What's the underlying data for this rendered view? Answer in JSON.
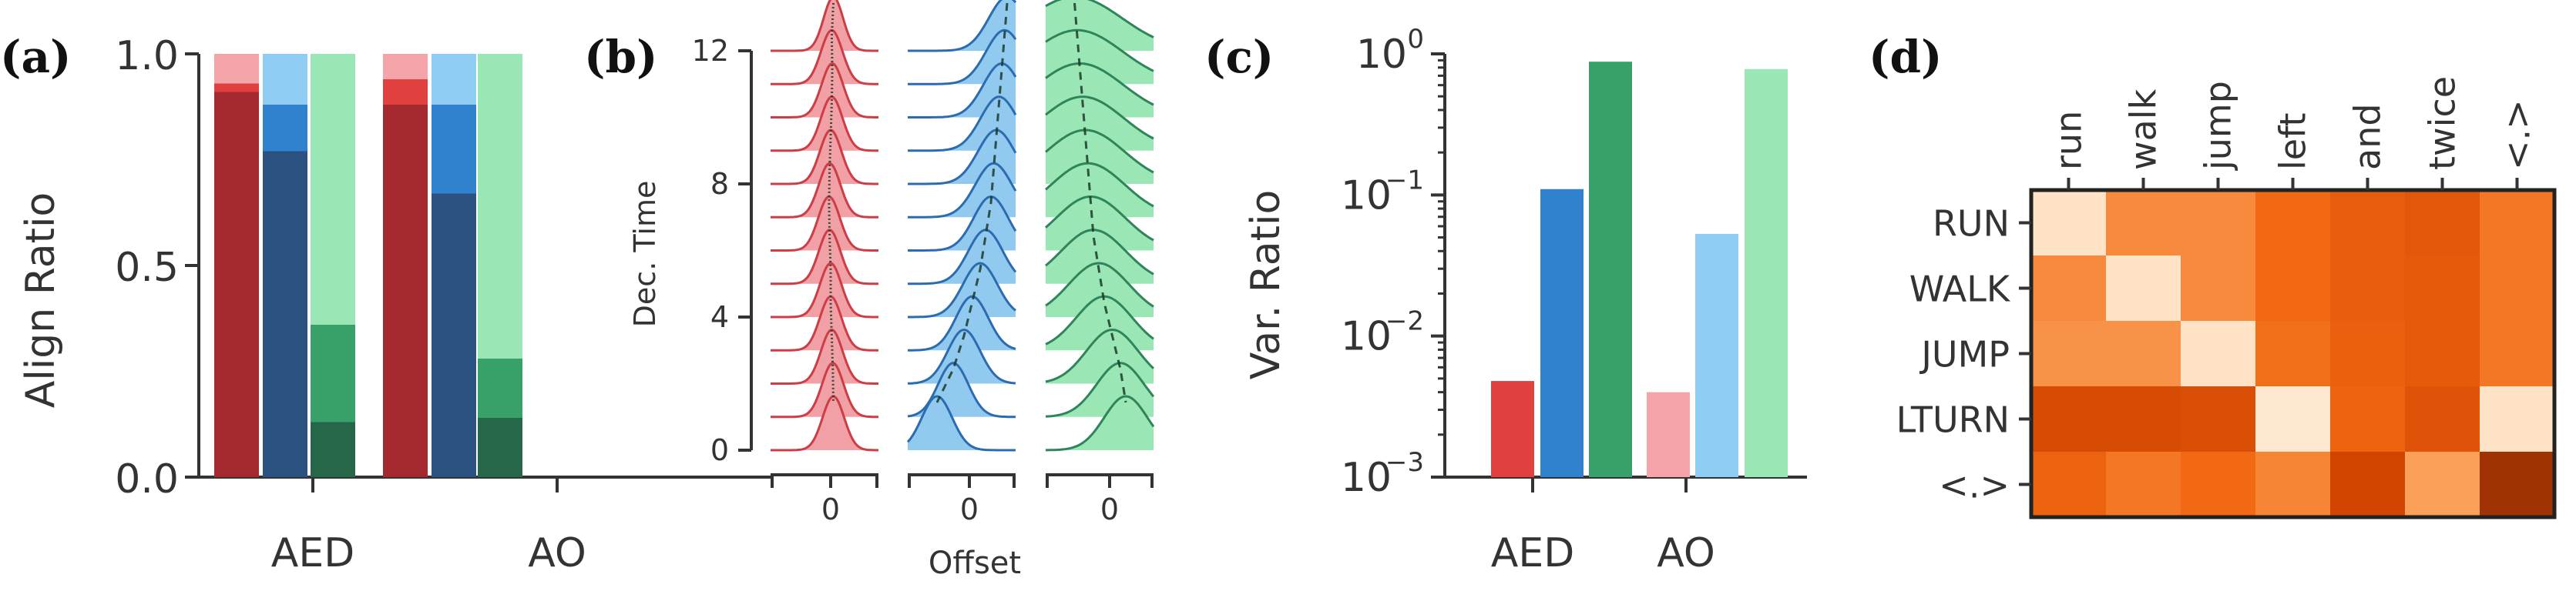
{
  "colors": {
    "red_dark": "#a52a30",
    "red_bright": "#e0403e",
    "red_light": "#f5a5aa",
    "blue_dark": "#2c5282",
    "blue_mid": "#3182ce",
    "blue_light": "#90cdf4",
    "green_dark": "#276749",
    "green_mid": "#38a169",
    "green_light": "#9ae6b4",
    "ridge_red_fill": "#f1a0a6",
    "ridge_red_line": "#cc3d45",
    "ridge_blue_fill": "#92c9ef",
    "ridge_blue_line": "#2b6cb0",
    "ridge_green_fill": "#9be6b5",
    "ridge_green_line": "#2f855a",
    "axis": "#333333"
  },
  "chart_data": [
    {
      "panel": "(a)",
      "type": "bar",
      "stacked": true,
      "ylabel": "Align Ratio",
      "ylim": [
        0,
        1
      ],
      "yticks": [
        0,
        0.5,
        1
      ],
      "ytick_labels": [
        "0.0",
        "0.5",
        "1.0"
      ],
      "categories": [
        "AED",
        "AO"
      ],
      "series": [
        {
          "name": "red",
          "colors": [
            "red_dark",
            "red_bright",
            "red_light"
          ],
          "segments": {
            "AED": [
              0.91,
              0.02,
              0.07
            ],
            "AO": [
              0.88,
              0.06,
              0.06
            ]
          }
        },
        {
          "name": "blue",
          "colors": [
            "blue_dark",
            "blue_mid",
            "blue_light"
          ],
          "segments": {
            "AED": [
              0.77,
              0.11,
              0.12
            ],
            "AO": [
              0.67,
              0.21,
              0.12
            ]
          }
        },
        {
          "name": "green",
          "colors": [
            "green_dark",
            "green_mid",
            "green_light"
          ],
          "segments": {
            "AED": [
              0.13,
              0.23,
              0.64
            ],
            "AO": [
              0.14,
              0.14,
              0.72
            ]
          }
        }
      ]
    },
    {
      "panel": "(b)",
      "type": "ridgeline",
      "ylabel": "Dec. Time",
      "xlabel": "Offset",
      "yticks": [
        0,
        4,
        8,
        12
      ],
      "ytick_labels": [
        "0",
        "4",
        "8",
        "12"
      ],
      "xtick_labels": [
        "0",
        "0",
        "0"
      ],
      "series": [
        {
          "name": "red",
          "peak_offsets": [
            0.05,
            0.04,
            0.02,
            0,
            0,
            -0.02,
            -0.03,
            -0.02,
            0,
            0.02,
            0.03,
            0.02,
            0.05
          ],
          "widths": [
            0.1,
            0.1,
            0.1,
            0.1,
            0.1,
            0.1,
            0.1,
            0.1,
            0.1,
            0.1,
            0.1,
            0.1,
            0.09
          ]
        },
        {
          "name": "blue",
          "peak_offsets": [
            -0.6,
            -0.3,
            -0.1,
            0.05,
            0.2,
            0.3,
            0.4,
            0.45,
            0.5,
            0.55,
            0.6,
            0.65,
            0.7
          ],
          "widths": [
            0.14,
            0.14,
            0.15,
            0.15,
            0.16,
            0.16,
            0.16,
            0.17,
            0.17,
            0.17,
            0.17,
            0.17,
            0.17
          ]
        },
        {
          "name": "green",
          "peak_offsets": [
            0.3,
            0.2,
            0.05,
            -0.1,
            -0.2,
            -0.3,
            -0.35,
            -0.4,
            -0.45,
            -0.5,
            -0.55,
            -0.6,
            -0.65
          ],
          "widths": [
            0.2,
            0.22,
            0.24,
            0.26,
            0.28,
            0.3,
            0.32,
            0.34,
            0.36,
            0.38,
            0.4,
            0.42,
            0.44
          ]
        }
      ]
    },
    {
      "panel": "(c)",
      "type": "bar",
      "yscale": "log",
      "ylabel": "Var. Ratio",
      "ylim": [
        0.001,
        1
      ],
      "ytick_labels": [
        {
          "base": "10",
          "exp": "0"
        },
        {
          "base": "10",
          "exp": "−1"
        },
        {
          "base": "10",
          "exp": "−2"
        },
        {
          "base": "10",
          "exp": "−3"
        }
      ],
      "categories": [
        "AED",
        "AO"
      ],
      "series": [
        {
          "name": "red",
          "values": {
            "AED": 0.0048,
            "AO": 0.004
          },
          "colors": {
            "AED": "red_bright",
            "AO": "red_light"
          }
        },
        {
          "name": "blue",
          "values": {
            "AED": 0.11,
            "AO": 0.053
          },
          "colors": {
            "AED": "blue_mid",
            "AO": "blue_light"
          }
        },
        {
          "name": "green",
          "values": {
            "AED": 0.88,
            "AO": 0.78
          },
          "colors": {
            "AED": "green_mid",
            "AO": "green_light"
          }
        }
      ]
    },
    {
      "panel": "(d)",
      "type": "heatmap",
      "x_labels": [
        "run",
        "walk",
        "jump",
        "left",
        "and",
        "twice",
        "<.>"
      ],
      "y_labels": [
        "RUN",
        "WALK",
        "JUMP",
        "LTURN",
        "<.>"
      ],
      "values": [
        [
          0.95,
          0.62,
          0.62,
          0.5,
          0.42,
          0.38,
          0.55
        ],
        [
          0.62,
          0.95,
          0.62,
          0.5,
          0.42,
          0.4,
          0.55
        ],
        [
          0.65,
          0.65,
          0.95,
          0.52,
          0.44,
          0.4,
          0.55
        ],
        [
          0.3,
          0.3,
          0.32,
          0.97,
          0.46,
          0.35,
          0.95
        ],
        [
          0.45,
          0.55,
          0.5,
          0.6,
          0.25,
          0.7,
          0.1
        ]
      ],
      "colormap": "Oranges"
    }
  ]
}
